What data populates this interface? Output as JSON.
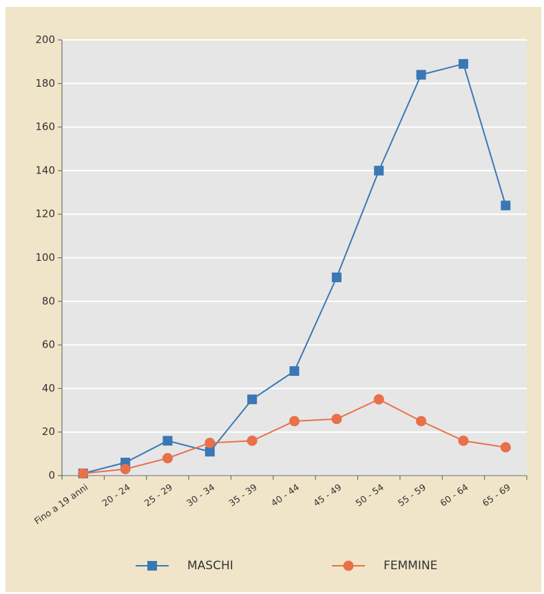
{
  "chart_data": {
    "type": "line",
    "categories": [
      "Fino a 19 anni",
      "20 - 24",
      "25 - 29",
      "30 - 34",
      "35 - 39",
      "40 - 44",
      "45 - 49",
      "50 - 54",
      "55 - 59",
      "60 - 64",
      "65 - 69"
    ],
    "series": [
      {
        "name": "MASCHI",
        "color": "#3a77b5",
        "marker": "square",
        "values": [
          1,
          6,
          16,
          11,
          35,
          48,
          91,
          140,
          184,
          189,
          124
        ]
      },
      {
        "name": "FEMMINE",
        "color": "#e8704a",
        "marker": "circle",
        "values": [
          1,
          3,
          8,
          15,
          16,
          25,
          26,
          35,
          25,
          16,
          13
        ]
      }
    ],
    "ylim": [
      0,
      200
    ],
    "yticks": [
      0,
      20,
      40,
      60,
      80,
      100,
      120,
      140,
      160,
      180,
      200
    ],
    "grid": true,
    "legend": "bottom"
  }
}
